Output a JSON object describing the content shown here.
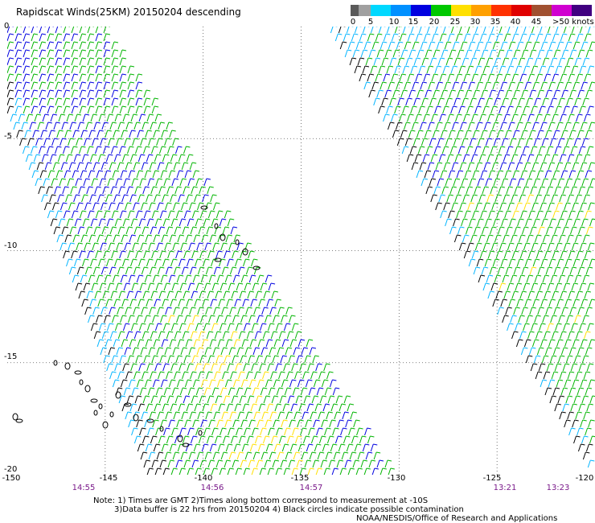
{
  "title": "Rapidscat Winds(25KM) 20150204 descending",
  "colorbar": {
    "labels": [
      "0",
      "5",
      "10",
      "15",
      "20",
      "25",
      "30",
      "35",
      "40",
      "45",
      ">50 knots"
    ],
    "colors": [
      "#5a5a5a",
      "#a0a0a0",
      "#00d8ff",
      "#0090ff",
      "#0000e0",
      "#00c800",
      "#ffe000",
      "#ffa000",
      "#ff3000",
      "#e00000",
      "#a05030",
      "#d000d0",
      "#8000c0",
      "#400080"
    ]
  },
  "lat_labels": [
    "0",
    "-5",
    "-10",
    "-15",
    "-20"
  ],
  "lon_labels": [
    "-150",
    "-145",
    "-140",
    "-135",
    "-130",
    "-125",
    "-120"
  ],
  "time_labels": [
    "14:55",
    "14:56",
    "14:57",
    "13:21",
    "13:23"
  ],
  "notes": {
    "line1": "Note: 1) Times are GMT 2)Times along bottom correspond to measurement at -10S",
    "line2": "3)Data buffer is 22 hrs from 20150204 4) Black circles indicate possible contamination",
    "line3": "NOAA/NESDIS/Office of Research and Applications"
  },
  "map": {
    "lat_range": [
      -20,
      0
    ],
    "lon_range": [
      -150,
      -120
    ],
    "grid": "dotted",
    "wind_colors": {
      "black": "#000000",
      "light_blue": "#00b4ff",
      "blue": "#0000e0",
      "green": "#00b400",
      "yellow": "#ffe000"
    }
  }
}
